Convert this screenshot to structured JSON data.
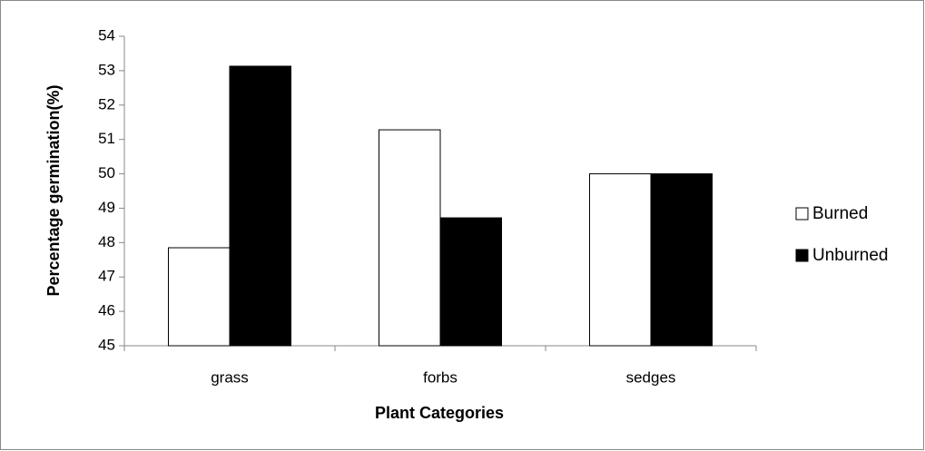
{
  "chart_data": {
    "type": "bar",
    "x_label": "Plant Categories",
    "y_label": "Percentage germination(%)",
    "categories": [
      "grass",
      "forbs",
      "sedges"
    ],
    "series": [
      {
        "name": "Burned",
        "color": "#ffffff",
        "values": [
          47.85,
          51.28,
          50
        ]
      },
      {
        "name": "Unburned",
        "color": "#000000",
        "values": [
          53.13,
          48.72,
          50
        ]
      }
    ],
    "ylim": [
      45,
      54
    ],
    "yticks": [
      45,
      46,
      47,
      48,
      49,
      50,
      51,
      52,
      53,
      54
    ],
    "grid": false,
    "legend": "right"
  }
}
